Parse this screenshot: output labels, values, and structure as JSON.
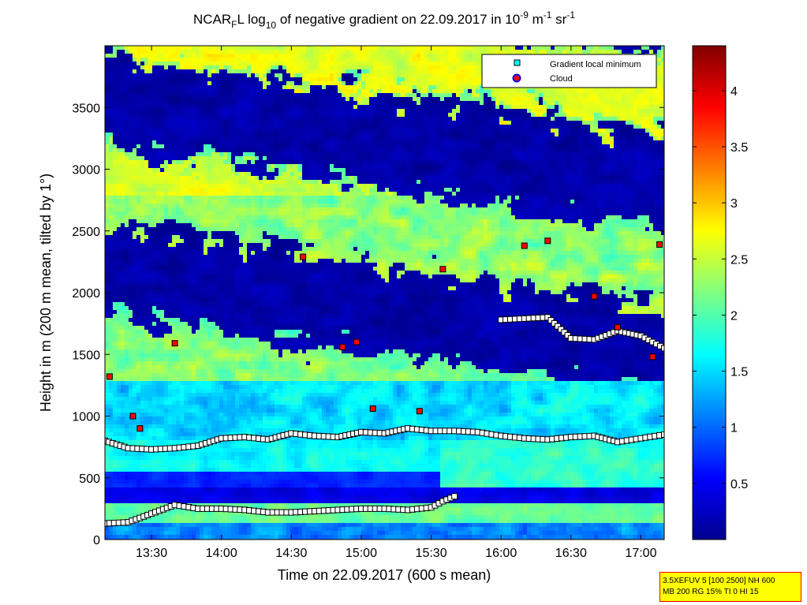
{
  "chart_data": {
    "type": "heatmap",
    "title": {
      "part1": "NCAR",
      "sub1": "F",
      "part2": "L log",
      "sub2": "10",
      "part3": " of negative gradient on 22.09.2017 in 10",
      "sup1": "-9",
      "part4": " m",
      "sup2": "-1",
      "part5": " sr",
      "sup3": "-1"
    },
    "xlabel": "Time on 22.09.2017 (600 s mean)",
    "ylabel": "Height in m (200 m mean, tilted by 1°)",
    "xlim": [
      "13:10",
      "17:10"
    ],
    "ylim": [
      0,
      4000
    ],
    "x_ticks": [
      "13:30",
      "14:00",
      "14:30",
      "15:00",
      "15:30",
      "16:00",
      "16:30",
      "17:00"
    ],
    "y_ticks": [
      0,
      500,
      1000,
      1500,
      2000,
      2500,
      3000,
      3500
    ],
    "colorbar": {
      "range": [
        0,
        4.4
      ],
      "ticks": [
        0.5,
        1,
        1.5,
        2,
        2.5,
        3,
        3.5,
        4
      ],
      "tick_labels": [
        "0.5",
        "1",
        "1.5",
        "2",
        "2.5",
        "3",
        "3.5",
        "4"
      ],
      "colormap": "jet"
    },
    "legend": {
      "placement": "top-right",
      "entries": [
        {
          "label": "Gradient local minimum",
          "marker": "square",
          "color": "#00ffff"
        },
        {
          "label": "Cloud",
          "marker": "circle",
          "color": "#ff0000",
          "edge": "#0000ff"
        }
      ]
    },
    "series": [
      {
        "name": "Gradient local minimum",
        "description_layer": "lower",
        "x": [
          "13:10",
          "13:20",
          "13:30",
          "13:40",
          "13:50",
          "14:00",
          "14:10",
          "14:20",
          "14:30",
          "14:40",
          "14:50",
          "15:00",
          "15:10",
          "15:20",
          "15:30",
          "15:35",
          "15:40"
        ],
        "y": [
          130,
          140,
          210,
          280,
          250,
          250,
          240,
          220,
          220,
          230,
          240,
          250,
          250,
          240,
          260,
          310,
          350
        ]
      },
      {
        "name": "Gradient local minimum",
        "description_layer": "upper",
        "x": [
          "13:10",
          "13:20",
          "13:30",
          "13:40",
          "13:50",
          "14:00",
          "14:10",
          "14:20",
          "14:30",
          "14:40",
          "14:50",
          "15:00",
          "15:10",
          "15:20",
          "15:30",
          "15:40",
          "15:50",
          "16:00",
          "16:10",
          "16:20",
          "16:30",
          "16:40",
          "16:50",
          "17:00",
          "17:10"
        ],
        "y": [
          800,
          740,
          730,
          740,
          760,
          820,
          830,
          810,
          860,
          840,
          830,
          870,
          860,
          900,
          880,
          880,
          870,
          840,
          820,
          810,
          830,
          840,
          790,
          820,
          850
        ]
      },
      {
        "name": "Gradient local minimum",
        "description_layer": "elevated",
        "x": [
          "16:00",
          "16:10",
          "16:20",
          "16:30",
          "16:40",
          "16:50",
          "17:00",
          "17:10"
        ],
        "y": [
          1780,
          1790,
          1800,
          1630,
          1620,
          1690,
          1650,
          1550
        ]
      },
      {
        "name": "Cloud",
        "x": [
          "13:12",
          "13:22",
          "13:25",
          "13:40",
          "14:35",
          "14:52",
          "14:58",
          "15:05",
          "15:25",
          "15:35",
          "16:10",
          "16:20",
          "16:40",
          "16:50",
          "17:05",
          "17:08"
        ],
        "y": [
          1320,
          1000,
          900,
          1590,
          2290,
          1560,
          1600,
          1060,
          1040,
          2190,
          2380,
          2420,
          1970,
          1720,
          1480,
          2390
        ]
      }
    ]
  },
  "info_box": {
    "line1": "3.5XEFUV 5 [100 2500] NH 600",
    "line2": "MB 200 RG 15% TI 0 HI 15"
  },
  "colors": {
    "background": "#ffffff",
    "info_box_bg": "#ffff00",
    "info_box_border": "#ff0000",
    "cloud_marker": "#ff0000",
    "gradient_marker_fill": "#ffffff"
  }
}
